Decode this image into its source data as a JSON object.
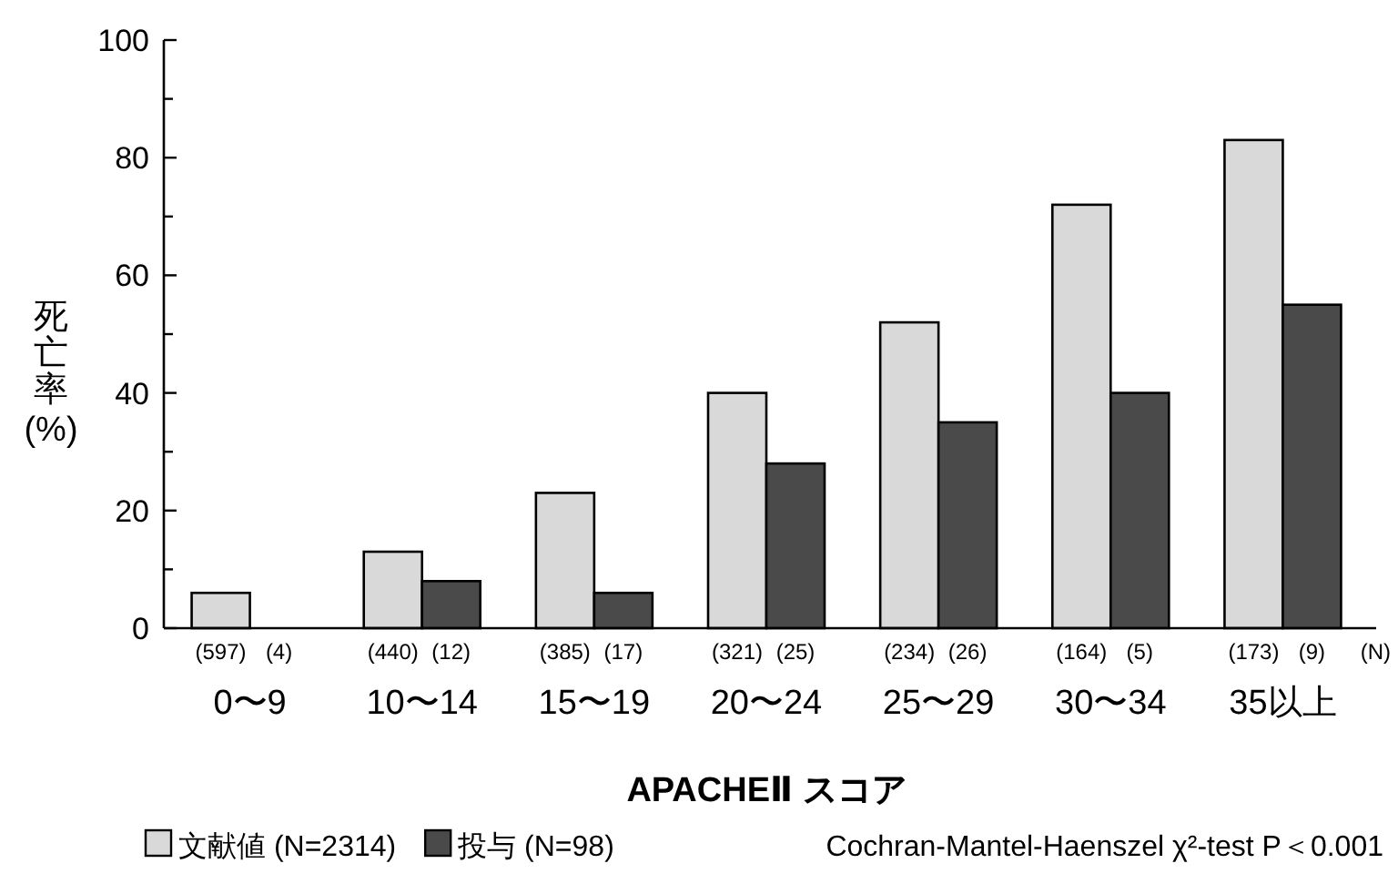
{
  "chart_data": {
    "type": "bar",
    "xlabel": "APACHEⅡ スコア",
    "ylabel": "死亡率 (%)",
    "categories": [
      "0〜9",
      "10〜14",
      "15〜19",
      "20〜24",
      "25〜29",
      "30〜34",
      "35以上"
    ],
    "series": [
      {
        "name": "文献値 (N=2314)",
        "color": "#d9d9d9",
        "values": [
          6,
          13,
          23,
          40,
          52,
          72,
          83
        ]
      },
      {
        "name": "投与 (N=98)",
        "color": "#4a4a4a",
        "values": [
          0,
          8,
          6,
          28,
          35,
          40,
          55
        ]
      }
    ],
    "ylim": [
      0,
      100
    ],
    "yticks": [
      0,
      {
        "value": 10,
        "label": null
      },
      20,
      {
        "value": 30,
        "label": null
      },
      40,
      {
        "value": 50,
        "label": null
      },
      60,
      {
        "value": 70,
        "label": null
      },
      80,
      {
        "value": 90,
        "label": null
      },
      100
    ],
    "grid": false,
    "legend": "bottom left",
    "annotations": [
      "(597)",
      "(4)",
      "(440)",
      "(12)",
      "(385)",
      "(17)",
      "(321)",
      "(25)",
      "(234)",
      "(26)",
      "(164)",
      "(5)",
      "(173)",
      "(9)",
      "(N)",
      "Cochran-Mantel-Haenszel χ²-test P＜0.001"
    ]
  }
}
